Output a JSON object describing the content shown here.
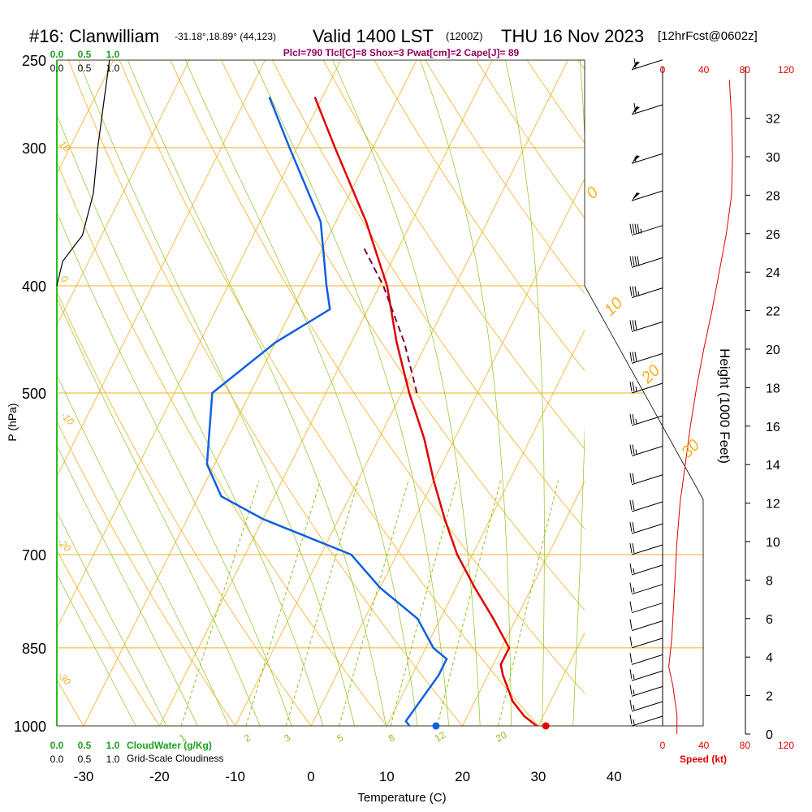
{
  "header": {
    "station": "#16: Clanwilliam",
    "location": "-31.18°,18.89° (44,123)",
    "valid": "Valid 1400 LST",
    "utc": "(1200Z)",
    "date": "THU 16 Nov 2023",
    "forecast": "[12hrFcst@0602z]",
    "params": "Plcl=790 Tlcl[C]=8 Shox=3 Pwat[cm]=2 Cape[J]= 89"
  },
  "colors": {
    "temperature": "#e00000",
    "dewpoint": "#1060e0",
    "parcel": "#800040",
    "isotherm_isobar": "#f0b020",
    "dry_adiabat": "#f0b020",
    "moist_adiabat": "#90c020",
    "mixing_ratio": "#90c020",
    "cloud_water": "#20a020",
    "cloudiness": "#000000",
    "wind_speed": "#e00000",
    "params_text": "#900060"
  },
  "chart_data": {
    "type": "skew-t sounding",
    "xlabel": "Temperature (C)",
    "ylabel": "P (hPa)",
    "y2label": "Height (1000 Feet)",
    "log_pressure_axis": true,
    "pressure_range": [
      1000,
      250
    ],
    "temperature_ticks": [
      -30,
      -20,
      -10,
      0,
      10,
      20,
      30,
      40
    ],
    "pressure_ticks": [
      250,
      300,
      400,
      500,
      700,
      850,
      1000
    ],
    "height_ticks": [
      "0",
      "2",
      "4",
      "6",
      "8",
      "10",
      "12",
      "14",
      "16",
      "18",
      "20",
      "22",
      "24",
      "26",
      "28",
      "30",
      "32"
    ],
    "temperature_profile": [
      {
        "p": 1000,
        "t": 29.8
      },
      {
        "p": 980,
        "t": 27.5
      },
      {
        "p": 950,
        "t": 25.0
      },
      {
        "p": 900,
        "t": 22.0
      },
      {
        "p": 880,
        "t": 21.0
      },
      {
        "p": 850,
        "t": 21.0
      },
      {
        "p": 800,
        "t": 17.0
      },
      {
        "p": 750,
        "t": 12.5
      },
      {
        "p": 700,
        "t": 8.0
      },
      {
        "p": 650,
        "t": 4.0
      },
      {
        "p": 600,
        "t": 0.0
      },
      {
        "p": 550,
        "t": -4.0
      },
      {
        "p": 500,
        "t": -9.0
      },
      {
        "p": 450,
        "t": -14.0
      },
      {
        "p": 400,
        "t": -19.0
      },
      {
        "p": 350,
        "t": -26.0
      },
      {
        "p": 300,
        "t": -35.0
      },
      {
        "p": 270,
        "t": -41.0
      }
    ],
    "dewpoint_profile": [
      {
        "p": 1000,
        "td": 13.0
      },
      {
        "p": 990,
        "td": 12.2
      },
      {
        "p": 900,
        "td": 13.5
      },
      {
        "p": 870,
        "td": 13.5
      },
      {
        "p": 850,
        "td": 11.0
      },
      {
        "p": 800,
        "td": 7.0
      },
      {
        "p": 750,
        "td": 0.0
      },
      {
        "p": 700,
        "td": -6.0
      },
      {
        "p": 650,
        "td": -20.0
      },
      {
        "p": 620,
        "td": -27.0
      },
      {
        "p": 580,
        "td": -31.0
      },
      {
        "p": 500,
        "td": -35.0
      },
      {
        "p": 450,
        "td": -30.0
      },
      {
        "p": 420,
        "td": -25.0
      },
      {
        "p": 400,
        "td": -27.0
      },
      {
        "p": 350,
        "td": -32.0
      },
      {
        "p": 300,
        "td": -41.0
      },
      {
        "p": 270,
        "td": -47.0
      }
    ],
    "parcel_profile": [
      {
        "p": 500,
        "t": -8.0
      },
      {
        "p": 450,
        "t": -13.0
      },
      {
        "p": 400,
        "t": -19.5
      },
      {
        "p": 370,
        "t": -24.5
      }
    ],
    "surface_temperature": 31,
    "surface_dewpoint": 16.5,
    "isotherm_labels": [
      "0",
      "10",
      "20",
      "30",
      "-10",
      "-20",
      "-30",
      "10",
      "0"
    ],
    "mixing_ratio_labels": [
      "1",
      "2",
      "3",
      "5",
      "8",
      "12",
      "20"
    ],
    "cloud_water_ticks": [
      "0.0",
      "0.5",
      "1.0"
    ],
    "cloudiness_ticks": [
      "0.0",
      "0.5",
      "1.0"
    ],
    "cloud_water_label": "CloudWater (g/Kg)",
    "cloudiness_label": "Grid-Scale Cloudiness",
    "speed_ticks": [
      "0",
      "40",
      "80",
      "120"
    ],
    "speed_label": "Speed (kt)",
    "wind_speed_profile": [
      {
        "h": 0,
        "s": 14
      },
      {
        "h": 1,
        "s": 14
      },
      {
        "h": 2.5,
        "s": 10
      },
      {
        "h": 3.5,
        "s": 6
      },
      {
        "h": 4,
        "s": 7
      },
      {
        "h": 5,
        "s": 9
      },
      {
        "h": 6,
        "s": 10
      },
      {
        "h": 8,
        "s": 12
      },
      {
        "h": 10,
        "s": 14
      },
      {
        "h": 12,
        "s": 17
      },
      {
        "h": 14,
        "s": 22
      },
      {
        "h": 16,
        "s": 27
      },
      {
        "h": 18,
        "s": 33
      },
      {
        "h": 20,
        "s": 40
      },
      {
        "h": 22,
        "s": 48
      },
      {
        "h": 24,
        "s": 55
      },
      {
        "h": 26,
        "s": 62
      },
      {
        "h": 28,
        "s": 67
      },
      {
        "h": 30,
        "s": 68
      },
      {
        "h": 32,
        "s": 67
      },
      {
        "h": 34,
        "s": 65
      }
    ],
    "cloudiness_profile": [
      {
        "p": 250,
        "v": 0.72
      },
      {
        "p": 280,
        "v": 0.62
      },
      {
        "p": 300,
        "v": 0.56
      },
      {
        "p": 330,
        "v": 0.5
      },
      {
        "p": 360,
        "v": 0.35
      },
      {
        "p": 380,
        "v": 0.08
      },
      {
        "p": 400,
        "v": 0.0
      }
    ],
    "wind_barbs": [
      {
        "p": 255,
        "speed": 60
      },
      {
        "p": 280,
        "speed": 60
      },
      {
        "p": 310,
        "speed": 55
      },
      {
        "p": 335,
        "speed": 50
      },
      {
        "p": 360,
        "speed": 45
      },
      {
        "p": 385,
        "speed": 40
      },
      {
        "p": 410,
        "speed": 35
      },
      {
        "p": 440,
        "speed": 30
      },
      {
        "p": 470,
        "speed": 30
      },
      {
        "p": 500,
        "speed": 25
      },
      {
        "p": 535,
        "speed": 25
      },
      {
        "p": 570,
        "speed": 25
      },
      {
        "p": 605,
        "speed": 20
      },
      {
        "p": 640,
        "speed": 20
      },
      {
        "p": 670,
        "speed": 20
      },
      {
        "p": 700,
        "speed": 20
      },
      {
        "p": 730,
        "speed": 15
      },
      {
        "p": 760,
        "speed": 15
      },
      {
        "p": 790,
        "speed": 10
      },
      {
        "p": 820,
        "speed": 10
      },
      {
        "p": 850,
        "speed": 10
      },
      {
        "p": 880,
        "speed": 10
      },
      {
        "p": 910,
        "speed": 15
      },
      {
        "p": 940,
        "speed": 15
      },
      {
        "p": 970,
        "speed": 15
      },
      {
        "p": 1000,
        "speed": 15
      }
    ]
  }
}
